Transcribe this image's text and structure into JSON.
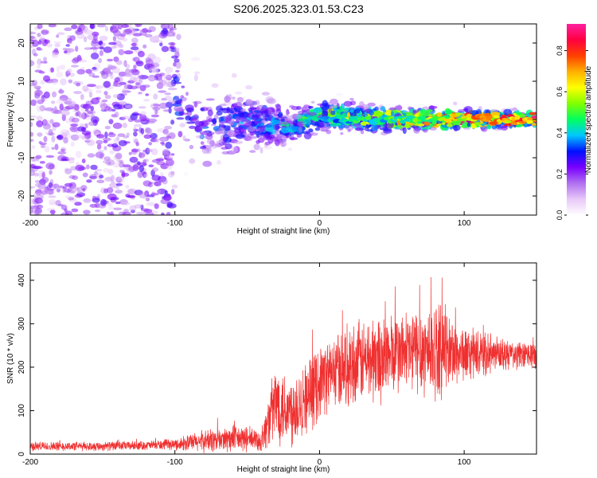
{
  "title": "S206.2025.323.01.53.C23",
  "chart_data": [
    {
      "type": "heatmap",
      "name": "spectrogram",
      "xlabel": "Height of straight line (km)",
      "ylabel": "Frequency (Hz)",
      "xlim": [
        -200,
        150
      ],
      "ylim": [
        -25,
        25
      ],
      "xticks": [
        -200,
        -100,
        0,
        100
      ],
      "xtick_labels": [
        "-200",
        "-100",
        "0",
        "100"
      ],
      "yticks": [
        -20,
        -10,
        0,
        10,
        20
      ],
      "ytick_labels": [
        "-20",
        "-10",
        "0",
        "10",
        "20"
      ],
      "colorbar": {
        "label": "Normalized spectral amplitude",
        "range": [
          0.0,
          0.93
        ],
        "ticks": [
          0.0,
          0.2,
          0.4,
          0.6,
          0.8
        ],
        "tick_labels": [
          "0.0",
          "0.2",
          "0.4",
          "0.6",
          "0.8"
        ],
        "colors": [
          "#ffffff",
          "#e8c8f8",
          "#b070f0",
          "#7a00ff",
          "#0010ff",
          "#00c8ff",
          "#00ff60",
          "#80ff00",
          "#ffff00",
          "#ffb000",
          "#ff4000",
          "#ff0040",
          "#ff20a0"
        ]
      },
      "description_points": [
        {
          "x": -200,
          "freq_center": 0,
          "freq_spread": 25,
          "amp": 0.15
        },
        {
          "x": -100,
          "freq_center": 8,
          "freq_spread": 10,
          "amp": 0.18
        },
        {
          "x": -80,
          "freq_center": -3,
          "freq_spread": 6,
          "amp": 0.2
        },
        {
          "x": -50,
          "freq_center": 0,
          "freq_spread": 5,
          "amp": 0.22
        },
        {
          "x": -20,
          "freq_center": -2,
          "freq_spread": 3,
          "amp": 0.25
        },
        {
          "x": 0,
          "freq_center": 1,
          "freq_spread": 2.5,
          "amp": 0.35
        },
        {
          "x": 50,
          "freq_center": 0,
          "freq_spread": 2,
          "amp": 0.45
        },
        {
          "x": 100,
          "freq_center": 0,
          "freq_spread": 1.5,
          "amp": 0.6
        },
        {
          "x": 150,
          "freq_center": 0,
          "freq_spread": 1,
          "amp": 0.75
        }
      ]
    },
    {
      "type": "line",
      "name": "snr",
      "xlabel": "Height of straight line (km)",
      "ylabel": "SNR (10 * v/v)",
      "xlim": [
        -200,
        150
      ],
      "ylim": [
        0,
        440
      ],
      "xticks": [
        -200,
        -100,
        0,
        100
      ],
      "xtick_labels": [
        "-200",
        "-100",
        "0",
        "100"
      ],
      "yticks": [
        0,
        100,
        200,
        300,
        400
      ],
      "ytick_labels": [
        "0",
        "100",
        "200",
        "300",
        "400"
      ],
      "color": "#f03030",
      "envelope_x": [
        -200,
        -150,
        -120,
        -100,
        -80,
        -60,
        -50,
        -40,
        -35,
        -30,
        -25,
        -20,
        -15,
        -10,
        -5,
        0,
        10,
        20,
        30,
        40,
        50,
        60,
        70,
        80,
        90,
        100,
        110,
        120,
        130,
        140,
        150
      ],
      "envelope_mean": [
        18,
        18,
        20,
        22,
        30,
        35,
        35,
        30,
        80,
        120,
        110,
        100,
        120,
        130,
        140,
        170,
        190,
        205,
        215,
        220,
        230,
        235,
        240,
        240,
        235,
        230,
        230,
        228,
        228,
        226,
        230
      ],
      "envelope_noise": [
        10,
        10,
        10,
        12,
        25,
        30,
        28,
        25,
        60,
        90,
        85,
        80,
        90,
        80,
        80,
        80,
        80,
        90,
        90,
        100,
        90,
        90,
        100,
        110,
        80,
        60,
        50,
        40,
        35,
        30,
        30
      ]
    }
  ]
}
